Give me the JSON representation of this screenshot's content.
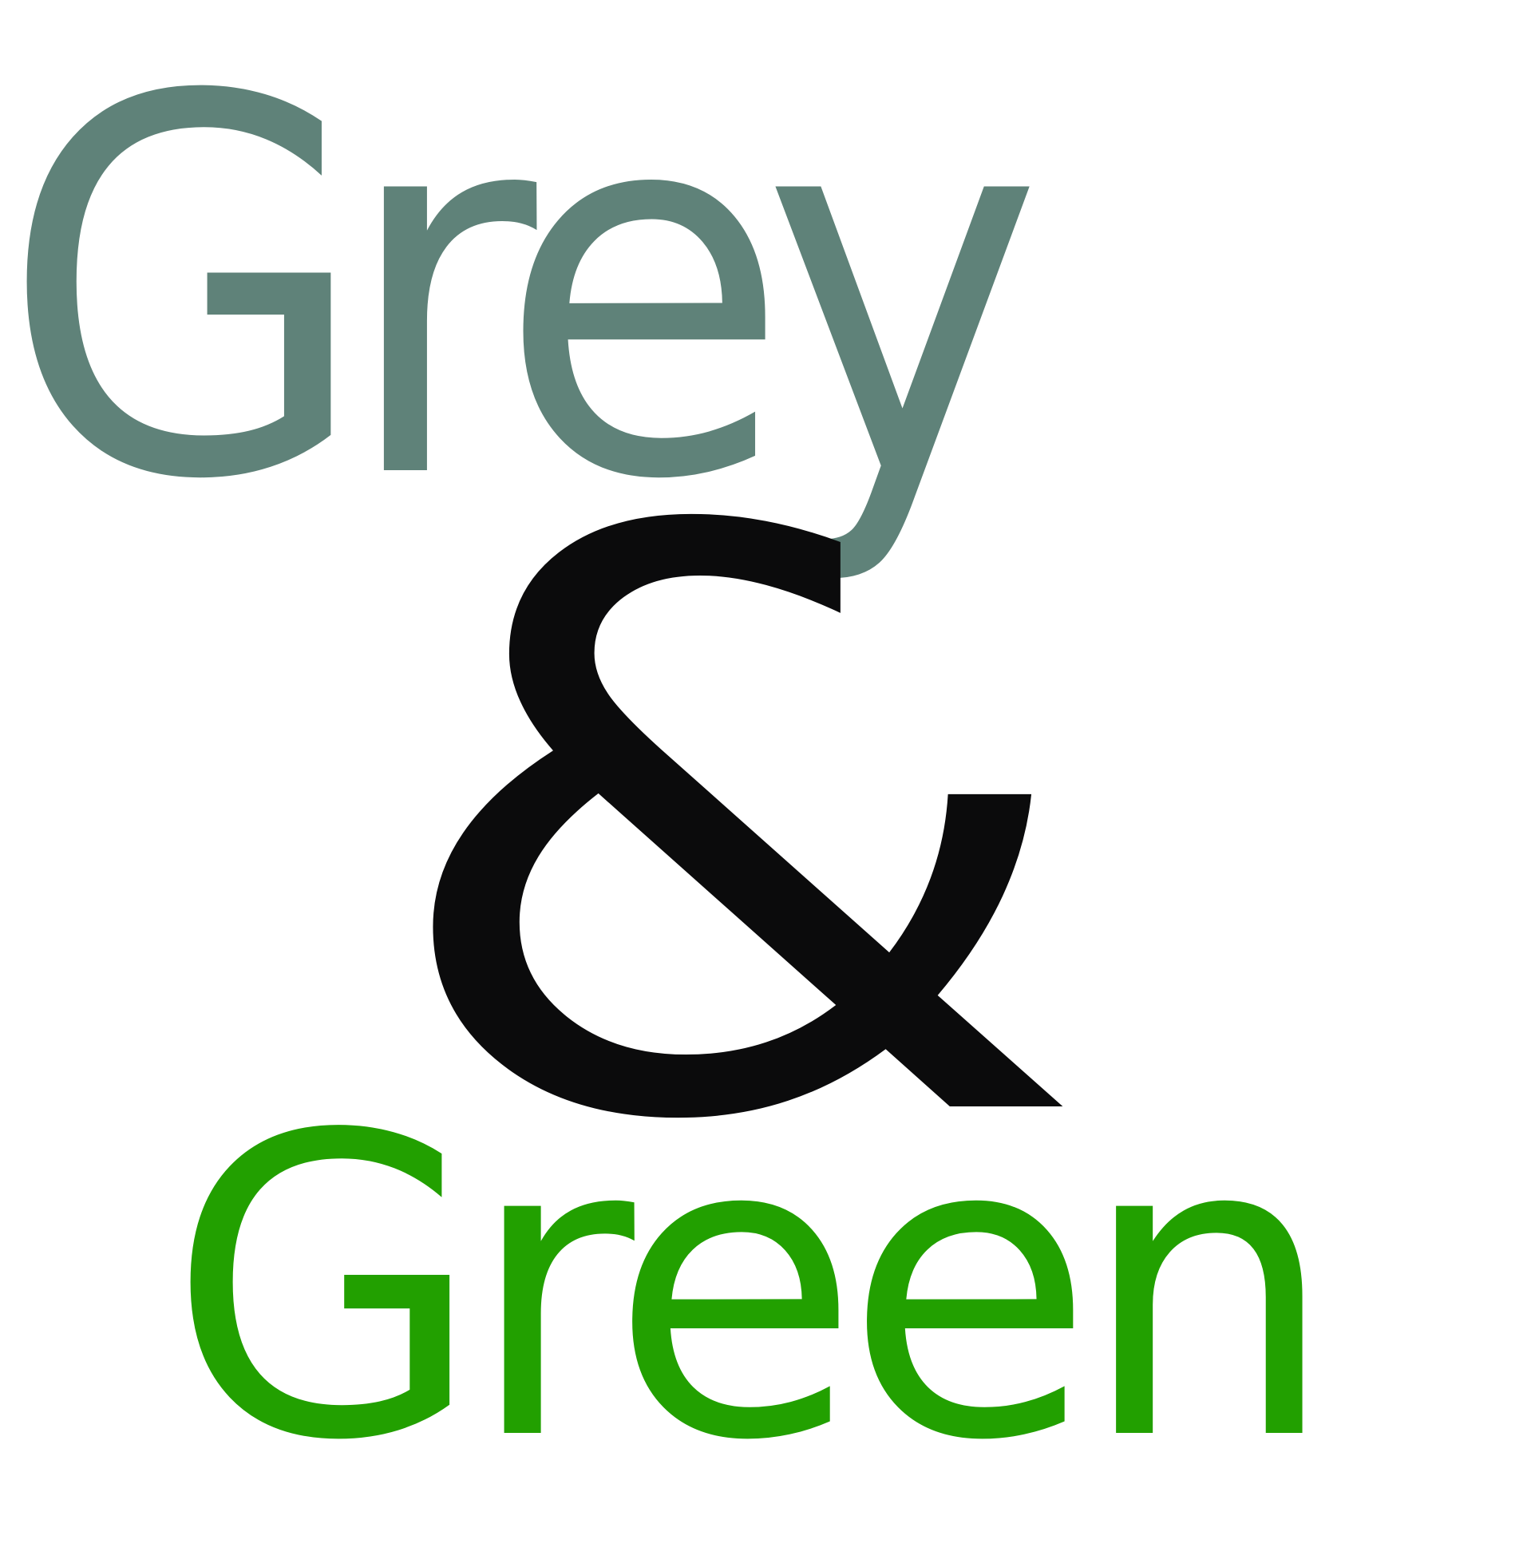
{
  "logo": {
    "word_top": "Grey",
    "ampersand": "&",
    "word_bottom": "Green"
  },
  "colors": {
    "grey": "#5f8279",
    "ampersand": "#0b0b0c",
    "green": "#22a000",
    "background": "#ffffff"
  }
}
